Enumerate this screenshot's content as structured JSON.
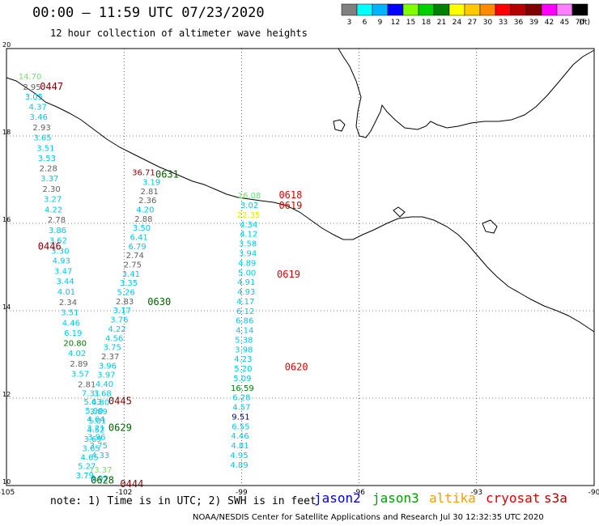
{
  "header": {
    "title": "00:00 – 11:59 UTC 07/23/2020",
    "subtitle": "12 hour collection of altimeter wave heights"
  },
  "legend": {
    "unit": "(ft)",
    "bins": [
      {
        "label": "3",
        "color": "#808080"
      },
      {
        "label": "6",
        "color": "#00ffff"
      },
      {
        "label": "9",
        "color": "#00b4ff"
      },
      {
        "label": "12",
        "color": "#0000ff"
      },
      {
        "label": "15",
        "color": "#80ff00"
      },
      {
        "label": "18",
        "color": "#00d000"
      },
      {
        "label": "21",
        "color": "#008000"
      },
      {
        "label": "24",
        "color": "#ffff00"
      },
      {
        "label": "27",
        "color": "#ffc800"
      },
      {
        "label": "30",
        "color": "#ff8c00"
      },
      {
        "label": "33",
        "color": "#ff0000"
      },
      {
        "label": "36",
        "color": "#b40000"
      },
      {
        "label": "39",
        "color": "#800000"
      },
      {
        "label": "42",
        "color": "#ff00ff"
      },
      {
        "label": "45",
        "color": "#ff80ff"
      },
      {
        "label": "70",
        "color": "#000000"
      }
    ]
  },
  "axes": {
    "lon_ticks": [
      "-105",
      "-102",
      "-99",
      "-96",
      "-93",
      "-90"
    ],
    "lat_ticks": [
      "20",
      "18",
      "16",
      "14",
      "12",
      "10"
    ]
  },
  "colors": {
    "gray": "#606060",
    "cyan": "#00c8e6",
    "lightgreen": "#70e070",
    "green": "#007800",
    "yellow": "#e6e600",
    "navy": "#000090",
    "darkred": "#800000",
    "red": "#e00000",
    "darkgreen": "#006400"
  },
  "times": [
    {
      "text": "0447",
      "color": "darkred",
      "lon": -103.85,
      "lat": 19.06
    },
    {
      "text": "0446",
      "color": "darkred",
      "lon": -103.9,
      "lat": 15.4
    },
    {
      "text": "0445",
      "color": "darkred",
      "lon": -102.1,
      "lat": 11.86
    },
    {
      "text": "0444",
      "color": "darkred",
      "lon": -101.8,
      "lat": 9.96
    },
    {
      "text": "0631",
      "color": "darkgreen",
      "lon": -100.9,
      "lat": 17.05
    },
    {
      "text": "0630",
      "color": "darkgreen",
      "lon": -101.1,
      "lat": 14.13
    },
    {
      "text": "0629",
      "color": "darkgreen",
      "lon": -102.1,
      "lat": 11.25
    },
    {
      "text": "0628",
      "color": "darkgreen",
      "lon": -102.55,
      "lat": 10.05
    },
    {
      "text": "0618",
      "color": "red",
      "lon": -97.75,
      "lat": 16.57
    },
    {
      "text": "0619",
      "color": "red",
      "lon": -97.75,
      "lat": 16.33
    },
    {
      "text": "0619",
      "color": "red",
      "lon": -97.8,
      "lat": 14.76
    },
    {
      "text": "0620",
      "color": "red",
      "lon": -97.6,
      "lat": 12.64
    }
  ],
  "tracks": [
    {
      "name": "track-west",
      "values": [
        [
          "14.70",
          "lightgreen",
          -104.4,
          19.3
        ],
        [
          "2.95",
          "gray",
          -104.35,
          19.06
        ],
        [
          "3.05",
          "cyan",
          -104.3,
          18.83
        ],
        [
          "4.37",
          "cyan",
          -104.2,
          18.6
        ],
        [
          "3.46",
          "cyan",
          -104.18,
          18.37
        ],
        [
          "2.93",
          "gray",
          -104.1,
          18.13
        ],
        [
          "3.65",
          "cyan",
          -104.08,
          17.9
        ],
        [
          "3.51",
          "cyan",
          -104.0,
          17.66
        ],
        [
          "3.53",
          "cyan",
          -103.97,
          17.43
        ],
        [
          "2.28",
          "gray",
          -103.93,
          17.19
        ],
        [
          "3.37",
          "cyan",
          -103.9,
          16.96
        ],
        [
          "2.30",
          "gray",
          -103.85,
          16.72
        ],
        [
          "3.27",
          "cyan",
          -103.82,
          16.49
        ],
        [
          "4.22",
          "cyan",
          -103.8,
          16.25
        ],
        [
          "2.78",
          "gray",
          -103.72,
          16.02
        ],
        [
          "3.86",
          "cyan",
          -103.7,
          15.78
        ],
        [
          "3.62",
          "cyan",
          -103.68,
          15.55
        ],
        [
          "3.30",
          "cyan",
          -103.63,
          15.31
        ],
        [
          "4.93",
          "cyan",
          -103.6,
          15.08
        ],
        [
          "3.47",
          "cyan",
          -103.55,
          14.84
        ],
        [
          "3.44",
          "cyan",
          -103.5,
          14.61
        ],
        [
          "4.01",
          "cyan",
          -103.47,
          14.37
        ],
        [
          "2.34",
          "gray",
          -103.43,
          14.13
        ],
        [
          "3.51",
          "cyan",
          -103.38,
          13.9
        ],
        [
          "4.46",
          "cyan",
          -103.35,
          13.66
        ],
        [
          "6.19",
          "cyan",
          -103.3,
          13.43
        ],
        [
          "20.80",
          "green",
          -103.25,
          13.19
        ],
        [
          "4.02",
          "cyan",
          -103.2,
          12.96
        ],
        [
          "2.89",
          "gray",
          -103.15,
          12.72
        ],
        [
          "3.57",
          "cyan",
          -103.12,
          12.49
        ],
        [
          "2.81",
          "gray",
          -102.95,
          12.25
        ],
        [
          "7.31",
          "cyan",
          -102.85,
          12.05
        ],
        [
          "5.63",
          "cyan",
          -102.8,
          11.85
        ],
        [
          "5.90",
          "cyan",
          -102.76,
          11.65
        ],
        [
          "4.64",
          "cyan",
          -102.72,
          11.45
        ],
        [
          "3.21",
          "cyan",
          -102.72,
          11.25
        ],
        [
          "3.96",
          "cyan",
          -102.7,
          11.05
        ],
        [
          "3.75",
          "cyan",
          -102.65,
          10.85
        ],
        [
          "4.33",
          "cyan",
          -102.6,
          10.63
        ],
        [
          "13.37",
          "lightgreen",
          -102.6,
          10.3
        ],
        [
          "3.92",
          "cyan",
          -102.63,
          10.1
        ]
      ]
    },
    {
      "name": "track-middle",
      "values": [
        [
          "36.71",
          "darkred",
          -101.5,
          17.1
        ],
        [
          "3.19",
          "cyan",
          -101.3,
          16.88
        ],
        [
          "2.81",
          "gray",
          -101.35,
          16.67
        ],
        [
          "2.36",
          "gray",
          -101.4,
          16.46
        ],
        [
          "4.20",
          "cyan",
          -101.46,
          16.25
        ],
        [
          "2.88",
          "gray",
          -101.5,
          16.04
        ],
        [
          "3.50",
          "cyan",
          -101.55,
          15.83
        ],
        [
          "6.41",
          "cyan",
          -101.62,
          15.62
        ],
        [
          "6.79",
          "cyan",
          -101.66,
          15.41
        ],
        [
          "2.74",
          "gray",
          -101.72,
          15.2
        ],
        [
          "2.75",
          "gray",
          -101.78,
          14.99
        ],
        [
          "3.41",
          "cyan",
          -101.82,
          14.78
        ],
        [
          "3.35",
          "cyan",
          -101.88,
          14.57
        ],
        [
          "5.26",
          "cyan",
          -101.95,
          14.36
        ],
        [
          "2.83",
          "gray",
          -101.98,
          14.15
        ],
        [
          "3.17",
          "cyan",
          -102.05,
          13.94
        ],
        [
          "3.76",
          "cyan",
          -102.12,
          13.73
        ],
        [
          "4.22",
          "cyan",
          -102.18,
          13.52
        ],
        [
          "4.56",
          "cyan",
          -102.25,
          13.31
        ],
        [
          "3.75",
          "cyan",
          -102.3,
          13.1
        ],
        [
          "2.37",
          "gray",
          -102.35,
          12.89
        ],
        [
          "3.96",
          "cyan",
          -102.42,
          12.68
        ],
        [
          "3.97",
          "cyan",
          -102.45,
          12.47
        ],
        [
          "4.40",
          "cyan",
          -102.5,
          12.26
        ],
        [
          "3.68",
          "cyan",
          -102.55,
          12.05
        ],
        [
          "4.80",
          "cyan",
          -102.6,
          11.84
        ],
        [
          "3.89",
          "cyan",
          -102.65,
          11.63
        ],
        [
          "5.01",
          "cyan",
          -102.68,
          11.42
        ],
        [
          "4.52",
          "cyan",
          -102.72,
          11.21
        ],
        [
          "3.69",
          "cyan",
          -102.8,
          11.0
        ],
        [
          "3.65",
          "cyan",
          -102.84,
          10.79
        ],
        [
          "4.65",
          "cyan",
          -102.88,
          10.58
        ],
        [
          "5.27",
          "cyan",
          -102.95,
          10.38
        ],
        [
          "3.79",
          "cyan",
          -103.0,
          10.17
        ]
      ]
    },
    {
      "name": "track-east",
      "values": [
        [
          "16.08",
          "lightgreen",
          -98.8,
          16.57
        ],
        [
          "3.02",
          "cyan",
          -98.8,
          16.35
        ],
        [
          "22.35",
          "yellow",
          -98.82,
          16.13
        ],
        [
          "4.34",
          "cyan",
          -98.82,
          15.91
        ],
        [
          "4.12",
          "cyan",
          -98.82,
          15.69
        ],
        [
          "3.58",
          "cyan",
          -98.84,
          15.47
        ],
        [
          "3.94",
          "cyan",
          -98.84,
          15.25
        ],
        [
          "4.89",
          "cyan",
          -98.86,
          15.03
        ],
        [
          "5.00",
          "cyan",
          -98.86,
          14.81
        ],
        [
          "4.91",
          "cyan",
          -98.88,
          14.59
        ],
        [
          "4.93",
          "cyan",
          -98.88,
          14.37
        ],
        [
          "4.17",
          "cyan",
          -98.9,
          14.15
        ],
        [
          "6.12",
          "cyan",
          -98.9,
          13.93
        ],
        [
          "6.86",
          "cyan",
          -98.92,
          13.71
        ],
        [
          "4.14",
          "cyan",
          -98.92,
          13.49
        ],
        [
          "5.38",
          "cyan",
          -98.94,
          13.27
        ],
        [
          "3.98",
          "cyan",
          -98.94,
          13.05
        ],
        [
          "4.23",
          "cyan",
          -98.96,
          12.83
        ],
        [
          "5.20",
          "cyan",
          -98.96,
          12.61
        ],
        [
          "5.09",
          "cyan",
          -98.98,
          12.39
        ],
        [
          "16.59",
          "green",
          -98.98,
          12.17
        ],
        [
          "6.28",
          "cyan",
          -99.0,
          11.95
        ],
        [
          "4.57",
          "cyan",
          -99.0,
          11.73
        ],
        [
          "9.51",
          "navy",
          -99.02,
          11.51
        ],
        [
          "6.55",
          "cyan",
          -99.02,
          11.29
        ],
        [
          "4.46",
          "cyan",
          -99.04,
          11.07
        ],
        [
          "4.81",
          "cyan",
          -99.04,
          10.85
        ],
        [
          "4.95",
          "cyan",
          -99.06,
          10.63
        ],
        [
          "4.89",
          "cyan",
          -99.06,
          10.41
        ]
      ]
    }
  ],
  "footer": {
    "note": "note: 1) Time is in UTC; 2) SWH is in feet",
    "satellites": [
      "jason2",
      "jason3",
      "altika",
      "cryosat",
      "s3a"
    ],
    "credit": "NOAA/NESDIS Center for Satellite Applications and Research    Jul 30 12:32:35 UTC 2020"
  }
}
